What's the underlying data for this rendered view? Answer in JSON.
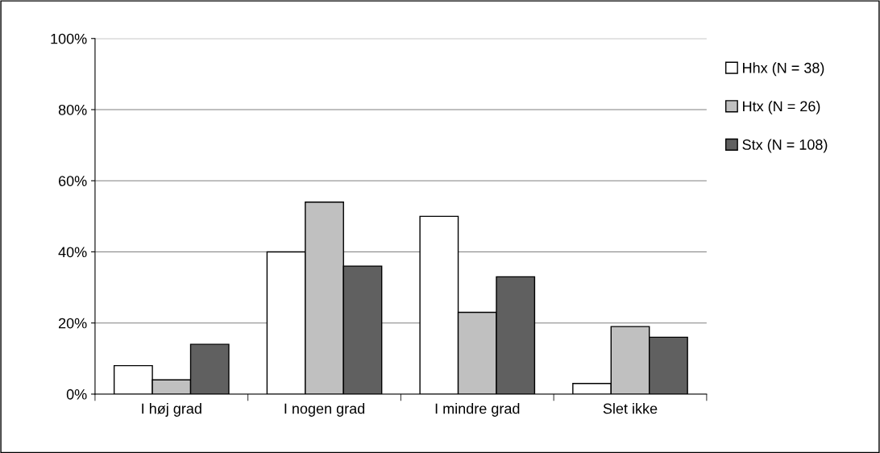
{
  "chart_data": {
    "type": "bar",
    "categories": [
      "I høj grad",
      "I nogen grad",
      "I mindre grad",
      "Slet ikke"
    ],
    "series": [
      {
        "name": "Hhx (N = 38)",
        "color": "#ffffff",
        "values": [
          8,
          40,
          50,
          3
        ]
      },
      {
        "name": "Htx (N = 26)",
        "color": "#c0c0c0",
        "values": [
          4,
          54,
          23,
          19
        ]
      },
      {
        "name": "Stx (N = 108)",
        "color": "#606060",
        "values": [
          14,
          36,
          33,
          16
        ]
      }
    ],
    "ylim": [
      0,
      100
    ],
    "yticks": [
      {
        "value": 0,
        "label": "0%"
      },
      {
        "value": 20,
        "label": "20%"
      },
      {
        "value": 40,
        "label": "40%"
      },
      {
        "value": 60,
        "label": "60%"
      },
      {
        "value": 80,
        "label": "80%"
      },
      {
        "value": 100,
        "label": "100%"
      }
    ],
    "grid": "y",
    "legend": "right"
  }
}
